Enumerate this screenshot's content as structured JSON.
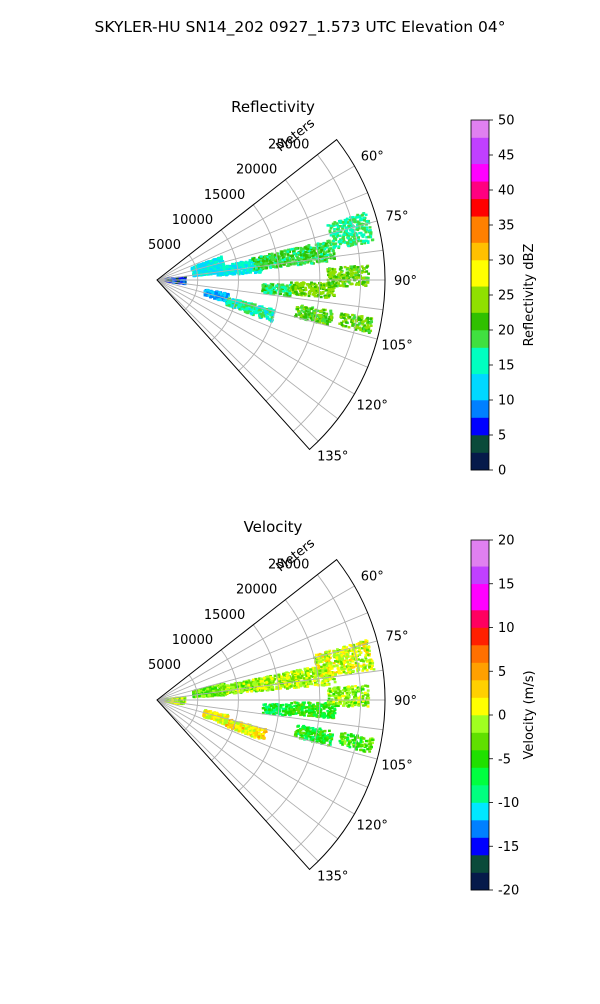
{
  "page": {
    "title": "SKYLER-HU  SN14_202  0927_1.573 UTC Elevation 04°"
  },
  "chart_data": [
    {
      "type": "polar-sector",
      "title": "Reflectivity",
      "radial_label": "Meters",
      "radial_ticks": [
        5000,
        10000,
        15000,
        20000,
        25000
      ],
      "radial_tick_labels": [
        "5000",
        "10000",
        "15000",
        "20000",
        "25000"
      ],
      "rmax": 28000,
      "theta_range_deg": [
        52,
        138
      ],
      "angle_ticks_deg": [
        60,
        75,
        90,
        105,
        120,
        135
      ],
      "angle_tick_labels": [
        "60°",
        "75°",
        "90°",
        "105°",
        "120°",
        "135°"
      ],
      "grid": true,
      "colorbar": {
        "label": "Reflectivity dBZ",
        "min": 0,
        "max": 50,
        "ticks": [
          0,
          5,
          10,
          15,
          20,
          25,
          30,
          35,
          40,
          45,
          50
        ],
        "tick_labels": [
          "0",
          "5",
          "10",
          "15",
          "20",
          "25",
          "30",
          "35",
          "40",
          "45",
          "50"
        ],
        "colormap": [
          [
            0,
            "#061a4a"
          ],
          [
            3,
            "#0a4a3a"
          ],
          [
            4.5,
            "#0000ff"
          ],
          [
            7,
            "#0080ff"
          ],
          [
            10,
            "#00d8ff"
          ],
          [
            14,
            "#00ffc0"
          ],
          [
            17,
            "#40e040"
          ],
          [
            20,
            "#30c000"
          ],
          [
            22,
            "#90e000"
          ],
          [
            26,
            "#ffff00"
          ],
          [
            30,
            "#ffc000"
          ],
          [
            33,
            "#ff8000"
          ],
          [
            36,
            "#ff0000"
          ],
          [
            39,
            "#ff0080"
          ],
          [
            41,
            "#ff00ff"
          ],
          [
            44,
            "#c040ff"
          ],
          [
            47,
            "#e080f0"
          ],
          [
            50,
            "#f8e0f8"
          ]
        ]
      },
      "echo_regions": [
        {
          "r": [
            4500,
            8500
          ],
          "theta": [
            70,
            84
          ],
          "value": 13
        },
        {
          "r": [
            7500,
            13000
          ],
          "theta": [
            78,
            86
          ],
          "value": 14
        },
        {
          "r": [
            12000,
            22000
          ],
          "theta": [
            77,
            84
          ],
          "value": 19
        },
        {
          "r": [
            22000,
            27000
          ],
          "theta": [
            72,
            80
          ],
          "value": 17
        },
        {
          "r": [
            13000,
            16500
          ],
          "theta": [
            92,
            97
          ],
          "value": 18
        },
        {
          "r": [
            16500,
            22000
          ],
          "theta": [
            91,
            96
          ],
          "value": 23
        },
        {
          "r": [
            21000,
            26000
          ],
          "theta": [
            86,
            92
          ],
          "value": 22
        },
        {
          "r": [
            17500,
            22000
          ],
          "theta": [
            100,
            105
          ],
          "value": 21
        },
        {
          "r": [
            23000,
            27000
          ],
          "theta": [
            100,
            104
          ],
          "value": 22
        },
        {
          "r": [
            1000,
            3500
          ],
          "theta": [
            84,
            98
          ],
          "value": 6
        },
        {
          "r": [
            6000,
            9000
          ],
          "theta": [
            101,
            108
          ],
          "value": 10
        },
        {
          "r": [
            9000,
            15000
          ],
          "theta": [
            104,
            110
          ],
          "value": 16
        }
      ]
    },
    {
      "type": "polar-sector",
      "title": "Velocity",
      "radial_label": "Meters",
      "radial_ticks": [
        5000,
        10000,
        15000,
        20000,
        25000
      ],
      "radial_tick_labels": [
        "5000",
        "10000",
        "15000",
        "20000",
        "25000"
      ],
      "rmax": 28000,
      "theta_range_deg": [
        52,
        138
      ],
      "angle_ticks_deg": [
        60,
        75,
        90,
        105,
        120,
        135
      ],
      "angle_tick_labels": [
        "60°",
        "75°",
        "90°",
        "105°",
        "120°",
        "135°"
      ],
      "grid": true,
      "colorbar": {
        "label": "Velocity (m/s)",
        "min": -20,
        "max": 20,
        "ticks": [
          -20,
          -15,
          -10,
          -5,
          0,
          5,
          10,
          15,
          20
        ],
        "tick_labels": [
          "-20",
          "-15",
          "-10",
          "-5",
          "0",
          "5",
          "10",
          "15",
          "20"
        ],
        "colormap": [
          [
            -20,
            "#061a4a"
          ],
          [
            -18,
            "#0a4a3a"
          ],
          [
            -16,
            "#0000ff"
          ],
          [
            -14,
            "#0080ff"
          ],
          [
            -12,
            "#00e8ff"
          ],
          [
            -10,
            "#00ff80"
          ],
          [
            -8,
            "#00ff40"
          ],
          [
            -6,
            "#20e000"
          ],
          [
            -4,
            "#60e000"
          ],
          [
            -2,
            "#a0ff20"
          ],
          [
            0,
            "#ffff00"
          ],
          [
            2,
            "#ffd000"
          ],
          [
            4,
            "#ffa000"
          ],
          [
            6,
            "#ff7000"
          ],
          [
            8,
            "#ff2000"
          ],
          [
            10,
            "#ff0060"
          ],
          [
            12,
            "#ff00ff"
          ],
          [
            15,
            "#c040ff"
          ],
          [
            17,
            "#e080f0"
          ],
          [
            20,
            "#f8e0f8"
          ]
        ]
      },
      "echo_regions": [
        {
          "r": [
            4500,
            8500
          ],
          "theta": [
            76,
            86
          ],
          "value": -3
        },
        {
          "r": [
            8000,
            13000
          ],
          "theta": [
            78,
            85
          ],
          "value": -2
        },
        {
          "r": [
            12000,
            22000
          ],
          "theta": [
            78,
            85
          ],
          "value": -1
        },
        {
          "r": [
            20000,
            27000
          ],
          "theta": [
            74,
            82
          ],
          "value": 0
        },
        {
          "r": [
            13000,
            16500
          ],
          "theta": [
            92,
            97
          ],
          "value": -7
        },
        {
          "r": [
            16500,
            22000
          ],
          "theta": [
            91,
            96
          ],
          "value": -5
        },
        {
          "r": [
            21000,
            26000
          ],
          "theta": [
            86,
            92
          ],
          "value": -2
        },
        {
          "r": [
            17500,
            22000
          ],
          "theta": [
            100,
            105
          ],
          "value": -6
        },
        {
          "r": [
            23000,
            27000
          ],
          "theta": [
            100,
            104
          ],
          "value": -4
        },
        {
          "r": [
            1000,
            3500
          ],
          "theta": [
            84,
            100
          ],
          "value": -1
        },
        {
          "r": [
            6000,
            9000
          ],
          "theta": [
            102,
            110
          ],
          "value": 1
        },
        {
          "r": [
            9000,
            14000
          ],
          "theta": [
            105,
            111
          ],
          "value": 2
        }
      ]
    }
  ]
}
